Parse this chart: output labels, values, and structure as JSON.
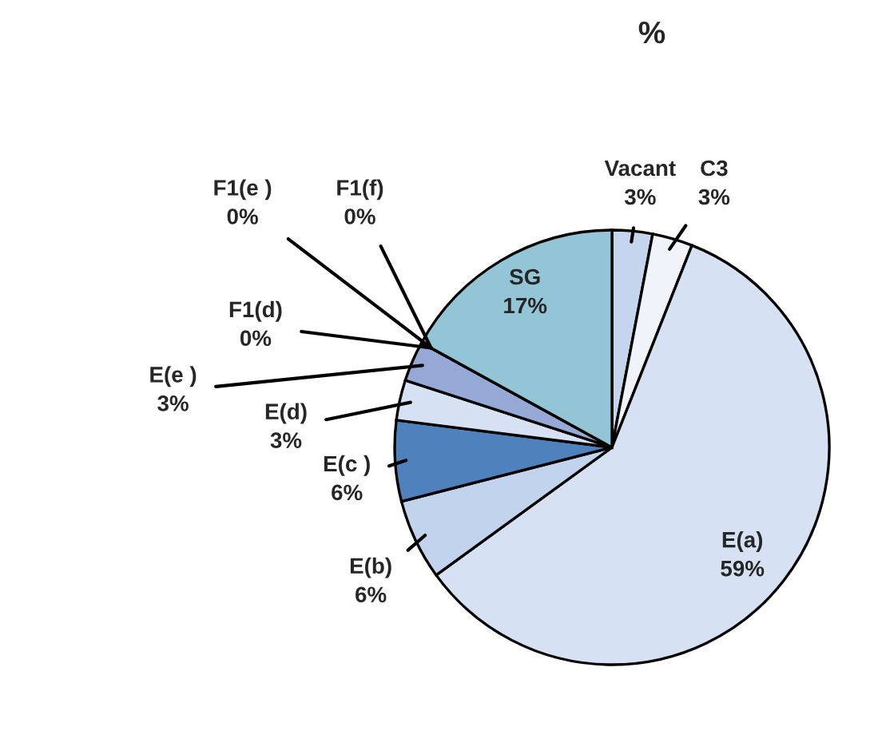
{
  "chart_data": {
    "type": "pie",
    "title": "%",
    "categories": [
      "Vacant",
      "C3",
      "E(a)",
      "E(b)",
      "E(c )",
      "E(d)",
      "E(e )",
      "F1(d)",
      "F1(e )",
      "F1(f)",
      "SG"
    ],
    "values": [
      3,
      3,
      59,
      6,
      6,
      3,
      3,
      0,
      0,
      0,
      17
    ],
    "value_labels": [
      "3%",
      "3%",
      "59%",
      "6%",
      "6%",
      "3%",
      "3%",
      "0%",
      "0%",
      "0%",
      "17%"
    ],
    "colors": [
      "#c5d5ee",
      "#f0f4fa",
      "#d6e2f3",
      "#c2d3ee",
      "#4f81bd",
      "#d6e2f3",
      "#95a8d6",
      "#95a8d6",
      "#95a8d6",
      "#95a8d6",
      "#93c5d6"
    ]
  }
}
